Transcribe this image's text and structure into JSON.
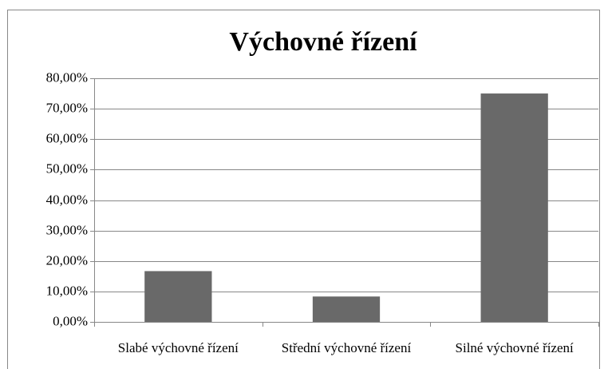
{
  "chart_data": {
    "type": "bar",
    "title": "Výchovné řízení",
    "categories": [
      "Slabé výchovné řízení",
      "Střední výchovné řízení",
      "Silné výchovné řízení"
    ],
    "values": [
      16.67,
      8.33,
      75
    ],
    "color": "#696969",
    "ylim": [
      0,
      80
    ],
    "yticks": [
      {
        "value": 0,
        "label": "0,00%"
      },
      {
        "value": 10,
        "label": "10,00%"
      },
      {
        "value": 20,
        "label": "20,00%"
      },
      {
        "value": 30,
        "label": "30,00%"
      },
      {
        "value": 40,
        "label": "40,00%"
      },
      {
        "value": 50,
        "label": "50,00%"
      },
      {
        "value": 60,
        "label": "60,00%"
      },
      {
        "value": 70,
        "label": "70,00%"
      },
      {
        "value": 80,
        "label": "80,00%"
      }
    ],
    "grid": true
  }
}
